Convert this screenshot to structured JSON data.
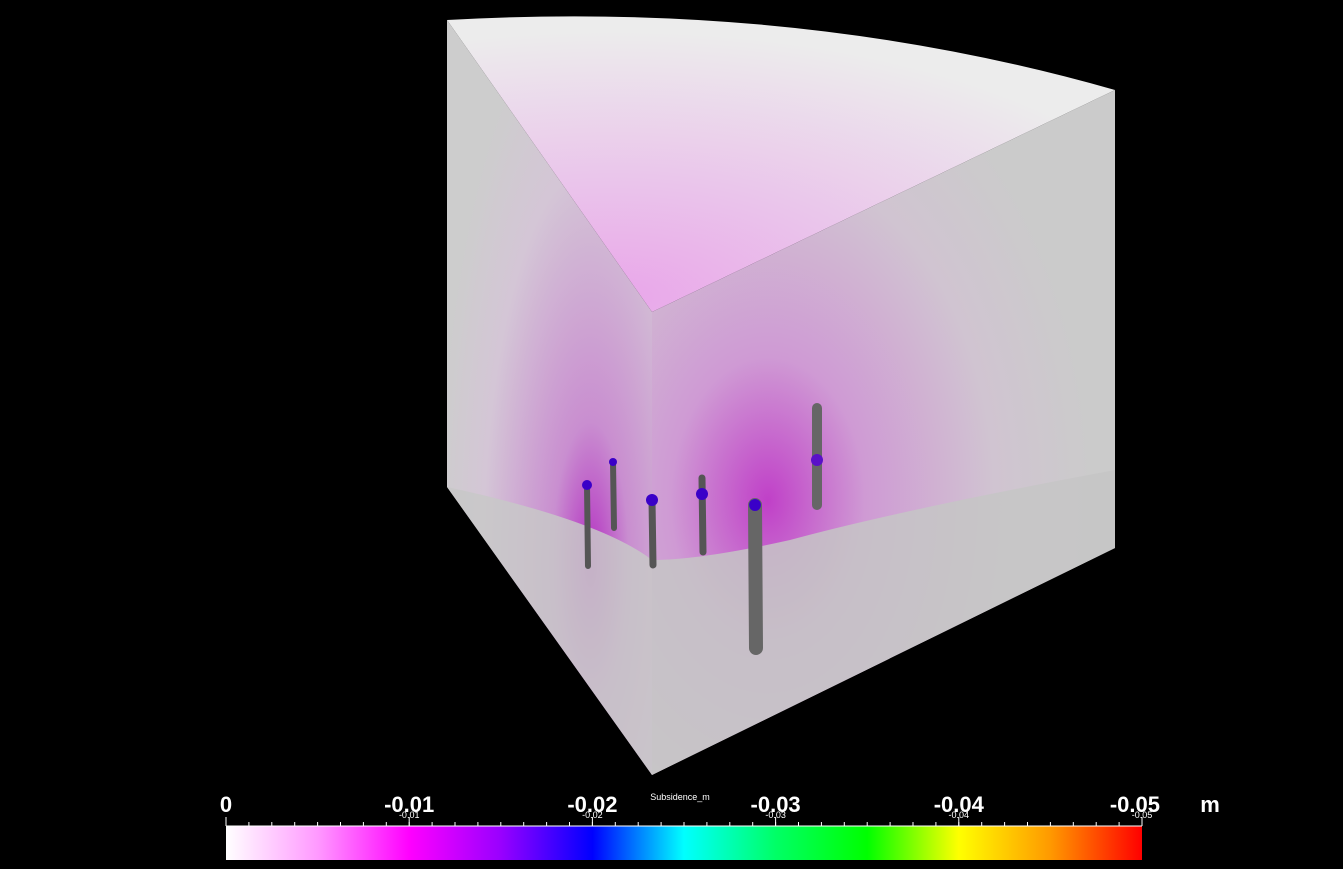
{
  "colorbar": {
    "title": "Subsidence_m",
    "unit": "m",
    "range": [
      0,
      -0.05
    ],
    "ticks": [
      0,
      -0.01,
      -0.02,
      -0.03,
      -0.04,
      -0.05
    ],
    "minor_labels": [
      -0.01,
      -0.02,
      -0.03,
      -0.04,
      -0.05
    ],
    "colormap": [
      "#ffffff",
      "#ff99ff",
      "#ff00ff",
      "#9900ff",
      "#0000ff",
      "#00ffff",
      "#00ff66",
      "#00ff00",
      "#ffff00",
      "#ff9900",
      "#ff0000"
    ]
  }
}
